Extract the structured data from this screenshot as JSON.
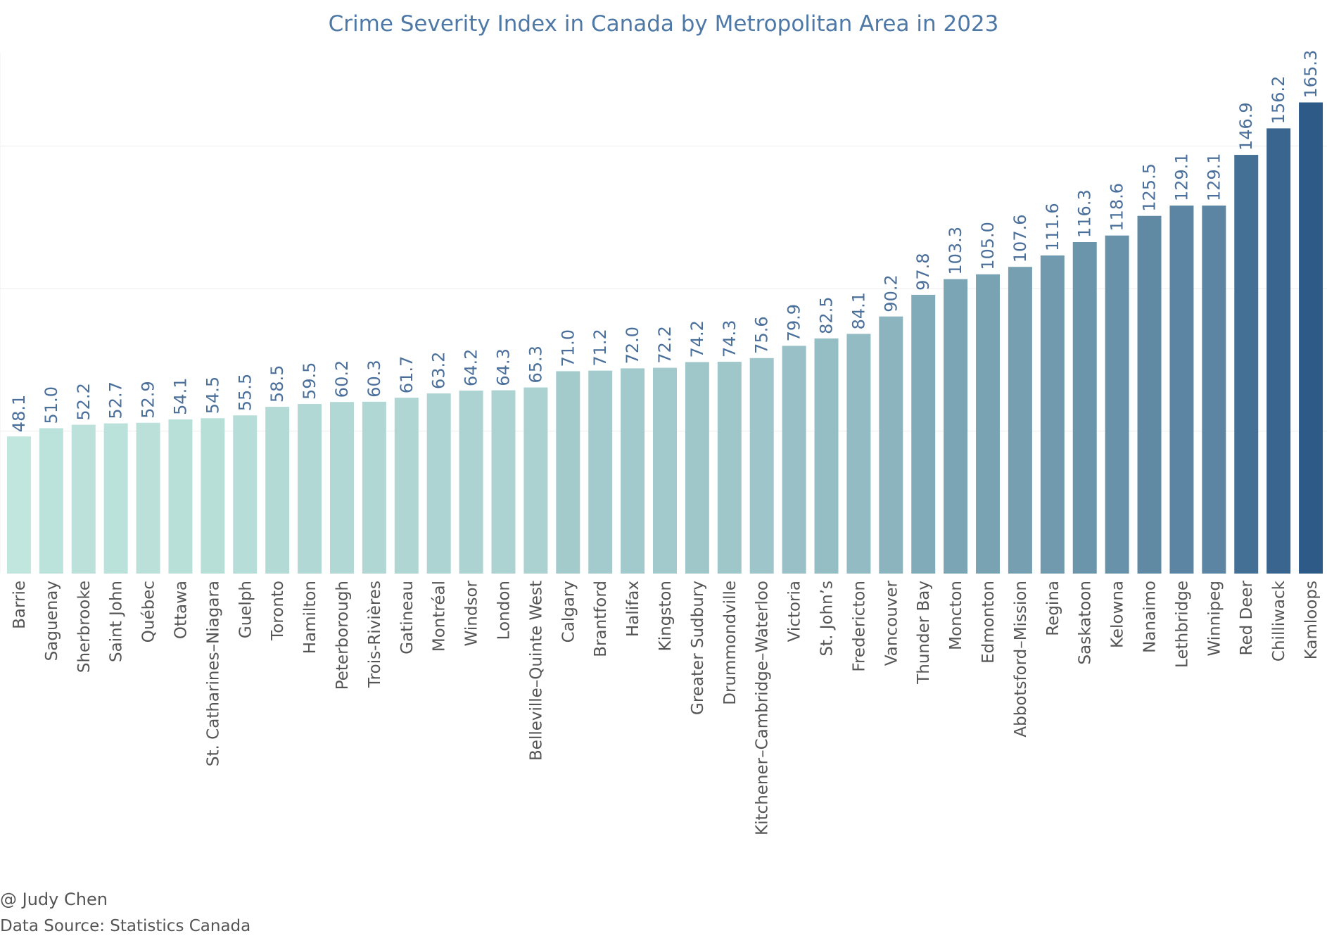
{
  "chart_data": {
    "type": "bar",
    "title": "Crime Severity Index in Canada by Metropolitan Area in 2023",
    "xlabel": "",
    "ylabel": "",
    "ylim": [
      0,
      200
    ],
    "grid": true,
    "categories": [
      "Barrie",
      "Saguenay",
      "Sherbrooke",
      "Saint John",
      "Québec",
      "Ottawa",
      "St. Catharines–Niagara",
      "Guelph",
      "Toronto",
      "Hamilton",
      "Peterborough",
      "Trois-Rivières",
      "Gatineau",
      "Montréal",
      "Windsor",
      "London",
      "Belleville–Quinte West",
      "Calgary",
      "Brantford",
      "Halifax",
      "Kingston",
      "Greater Sudbury",
      "Drummondville",
      "Kitchener–Cambridge–Waterloo",
      "Victoria",
      "St. John’s",
      "Fredericton",
      "Vancouver",
      "Thunder Bay",
      "Moncton",
      "Edmonton",
      "Abbotsford–Mission",
      "Regina",
      "Saskatoon",
      "Kelowna",
      "Nanaimo",
      "Lethbridge",
      "Winnipeg",
      "Red Deer",
      "Chilliwack",
      "Kamloops"
    ],
    "values": [
      48.1,
      51.0,
      52.2,
      52.7,
      52.9,
      54.1,
      54.5,
      55.5,
      58.5,
      59.5,
      60.2,
      60.3,
      61.7,
      63.2,
      64.2,
      64.3,
      65.3,
      71.0,
      71.2,
      72.0,
      72.2,
      74.2,
      74.3,
      75.6,
      79.9,
      82.5,
      84.1,
      90.2,
      97.8,
      103.3,
      105.0,
      107.6,
      111.6,
      116.3,
      118.6,
      125.5,
      129.1,
      129.1,
      146.9,
      156.2,
      165.3
    ],
    "value_labels": [
      "48.1",
      "51.0",
      "52.2",
      "52.7",
      "52.9",
      "54.1",
      "54.5",
      "55.5",
      "58.5",
      "59.5",
      "60.2",
      "60.3",
      "61.7",
      "63.2",
      "64.2",
      "64.3",
      "65.3",
      "71.0",
      "71.2",
      "72.0",
      "72.2",
      "74.2",
      "74.3",
      "75.6",
      "79.9",
      "82.5",
      "84.1",
      "90.2",
      "97.8",
      "103.3",
      "105.0",
      "107.6",
      "111.6",
      "116.3",
      "118.6",
      "125.5",
      "129.1",
      "129.1",
      "146.9",
      "156.2",
      "165.3"
    ],
    "color_scale": [
      "#c0e6dd",
      "#2e5a87"
    ]
  },
  "credits": {
    "author": "@ Judy Chen",
    "source": "Data Source: Statistics Canada"
  }
}
